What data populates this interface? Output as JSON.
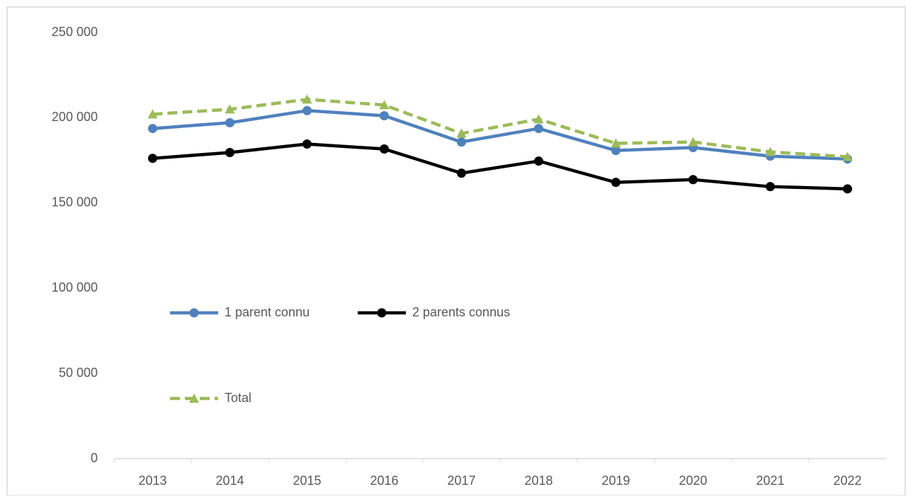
{
  "chart_data": {
    "type": "line",
    "categories": [
      "2013",
      "2014",
      "2015",
      "2016",
      "2017",
      "2018",
      "2019",
      "2020",
      "2021",
      "2022"
    ],
    "series": [
      {
        "name": "1 parent connu",
        "color": "#4f81bd",
        "marker": "circle",
        "dash": false,
        "values": [
          193700,
          197100,
          204200,
          201200,
          185800,
          193700,
          180800,
          182500,
          177500,
          175800
        ]
      },
      {
        "name": "2 parents connus",
        "color": "#000000",
        "marker": "circle",
        "dash": false,
        "values": [
          176200,
          179600,
          184600,
          181700,
          167500,
          174600,
          162100,
          163700,
          159600,
          158300
        ]
      },
      {
        "name": "Total",
        "color": "#9bbb59",
        "marker": "triangle",
        "dash": true,
        "values": [
          202100,
          205000,
          210800,
          207500,
          190800,
          199200,
          185000,
          185800,
          180000,
          177100
        ]
      }
    ],
    "ylim": [
      0,
      250000
    ],
    "yticks": [
      {
        "value": 0,
        "label": "0"
      },
      {
        "value": 50000,
        "label": "50 000"
      },
      {
        "value": 100000,
        "label": "100 000"
      },
      {
        "value": 150000,
        "label": "150 000"
      },
      {
        "value": 200000,
        "label": "200 000"
      },
      {
        "value": 250000,
        "label": "250 000"
      }
    ],
    "grid": false,
    "legend": "inside-left"
  }
}
